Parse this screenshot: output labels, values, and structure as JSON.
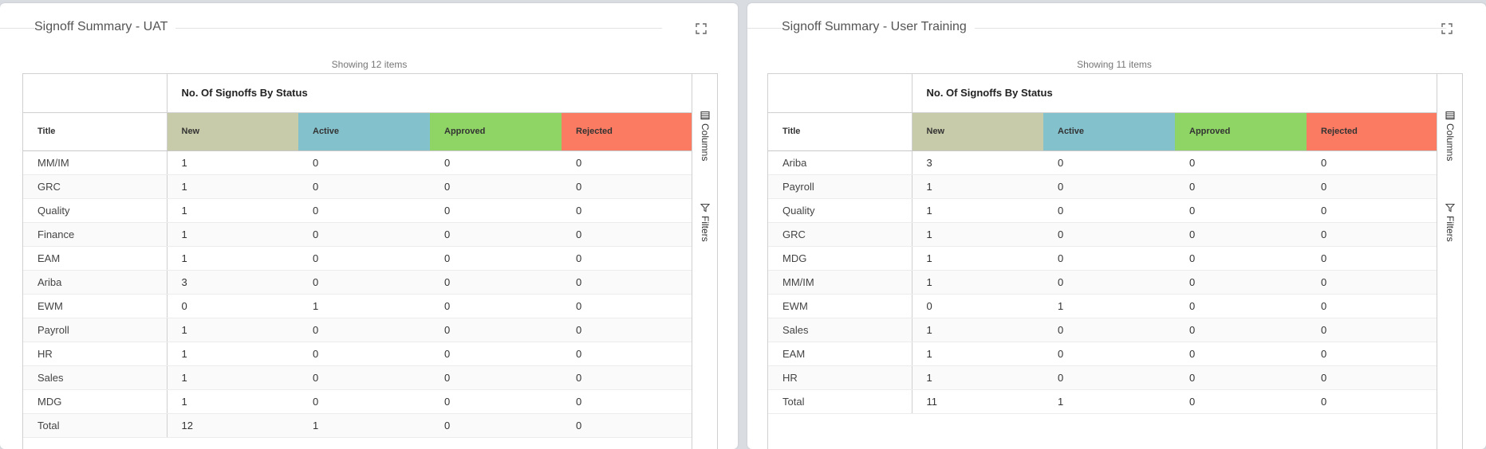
{
  "colors": {
    "new": "#c8cba9",
    "active": "#83c1cd",
    "approved": "#8fd565",
    "rejected": "#fb7b62"
  },
  "panels": [
    {
      "title": "Signoff Summary - UAT",
      "showing": "Showing 12 items",
      "group_header": "No. Of Signoffs By Status",
      "columns": [
        "Title",
        "New",
        "Active",
        "Approved",
        "Rejected"
      ],
      "rows": [
        [
          "MM/IM",
          "1",
          "0",
          "0",
          "0"
        ],
        [
          "GRC",
          "1",
          "0",
          "0",
          "0"
        ],
        [
          "Quality",
          "1",
          "0",
          "0",
          "0"
        ],
        [
          "Finance",
          "1",
          "0",
          "0",
          "0"
        ],
        [
          "EAM",
          "1",
          "0",
          "0",
          "0"
        ],
        [
          "Ariba",
          "3",
          "0",
          "0",
          "0"
        ],
        [
          "EWM",
          "0",
          "1",
          "0",
          "0"
        ],
        [
          "Payroll",
          "1",
          "0",
          "0",
          "0"
        ],
        [
          "HR",
          "1",
          "0",
          "0",
          "0"
        ],
        [
          "Sales",
          "1",
          "0",
          "0",
          "0"
        ],
        [
          "MDG",
          "1",
          "0",
          "0",
          "0"
        ],
        [
          "Total",
          "12",
          "1",
          "0",
          "0"
        ]
      ],
      "side": {
        "columns": "Columns",
        "filters": "Filters"
      }
    },
    {
      "title": "Signoff Summary - User Training",
      "showing": "Showing 11 items",
      "group_header": "No. Of Signoffs By Status",
      "columns": [
        "Title",
        "New",
        "Active",
        "Approved",
        "Rejected"
      ],
      "rows": [
        [
          "Ariba",
          "3",
          "0",
          "0",
          "0"
        ],
        [
          "Payroll",
          "1",
          "0",
          "0",
          "0"
        ],
        [
          "Quality",
          "1",
          "0",
          "0",
          "0"
        ],
        [
          "GRC",
          "1",
          "0",
          "0",
          "0"
        ],
        [
          "MDG",
          "1",
          "0",
          "0",
          "0"
        ],
        [
          "MM/IM",
          "1",
          "0",
          "0",
          "0"
        ],
        [
          "EWM",
          "0",
          "1",
          "0",
          "0"
        ],
        [
          "Sales",
          "1",
          "0",
          "0",
          "0"
        ],
        [
          "EAM",
          "1",
          "0",
          "0",
          "0"
        ],
        [
          "HR",
          "1",
          "0",
          "0",
          "0"
        ],
        [
          "Total",
          "11",
          "1",
          "0",
          "0"
        ]
      ],
      "side": {
        "columns": "Columns",
        "filters": "Filters"
      }
    }
  ]
}
